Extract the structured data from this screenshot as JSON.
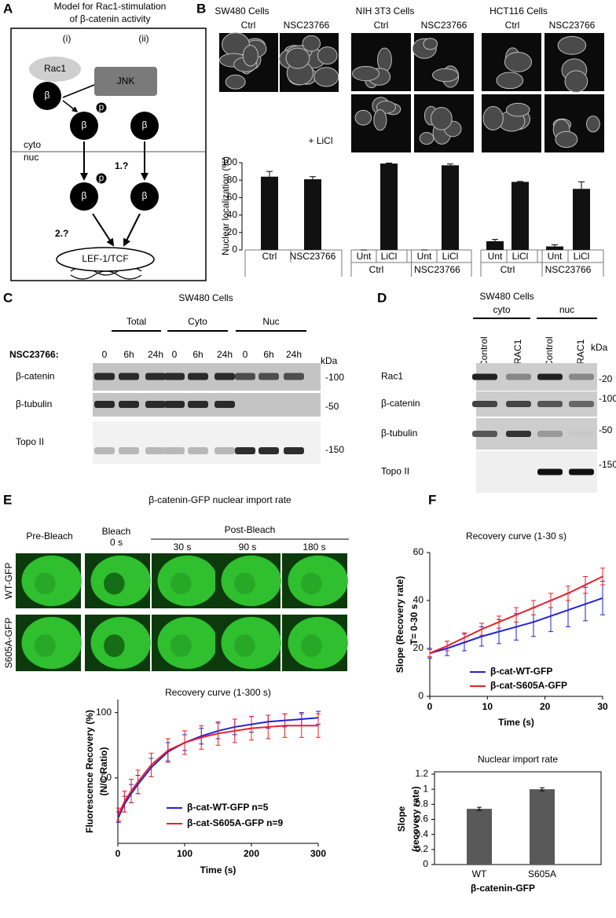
{
  "panels": {
    "a": {
      "label": "A",
      "title": [
        "Model for Rac1-stimulation",
        "of β-catenin activity"
      ],
      "paths": [
        "(i)",
        "(ii)"
      ],
      "rac1": "Rac1",
      "jnk": "JNK",
      "beta": "β",
      "p": "p",
      "cyto": "cyto",
      "nuc": "nuc",
      "q1": "1.?",
      "q2": "2.?",
      "lef": "LEF-1/TCF"
    },
    "b": {
      "label": "B",
      "cells": [
        "SW480 Cells",
        "NIH 3T3 Cells",
        "HCT116 Cells"
      ],
      "conditions": [
        "Ctrl",
        "NSC23766"
      ],
      "licl": "+ LiCl"
    },
    "c": {
      "label": "C",
      "title": "SW480 Cells",
      "fractions": [
        "Total",
        "Cyto",
        "Nuc"
      ],
      "treatment": "NSC23766:",
      "times": [
        "0",
        "6h",
        "24h"
      ],
      "kda": "kDa",
      "proteins": [
        "β-catenin",
        "β-tubulin",
        "Topo II"
      ],
      "markers": [
        "-100",
        "-50",
        "-150"
      ]
    },
    "d": {
      "label": "D",
      "title": "SW480 Cells",
      "fractions": [
        "cyto",
        "nuc"
      ],
      "lanes": [
        "siControl",
        "siRAC1"
      ],
      "kda": "kDa",
      "proteins": [
        "Rac1",
        "β-catenin",
        "β-tubulin",
        "Topo II"
      ],
      "markers": [
        "-20",
        "-100",
        "-50",
        "-150"
      ]
    },
    "e": {
      "label": "E",
      "title": "β-catenin-GFP nuclear import rate",
      "pre": "Pre-Bleach",
      "bleach": "Bleach",
      "bleach_time": "0 s",
      "post": "Post-Bleach",
      "post_times": [
        "30 s",
        "90 s",
        "180 s"
      ],
      "rows": [
        "WT-GFP",
        "S605A-GFP"
      ]
    },
    "f": {
      "label": "F"
    }
  },
  "chart_data": [
    {
      "type": "bar",
      "y_label": "Nuclear localization (%)",
      "categories": [
        "Ctrl",
        "NSC23766",
        "Unt",
        "LiCl",
        "Unt",
        "LiCl",
        "Unt",
        "LiCl",
        "Unt",
        "LiCl"
      ],
      "subgroups": [
        "Ctrl",
        "NSC23766",
        "Ctrl",
        "NSC23766"
      ],
      "values": [
        84,
        81,
        0,
        99,
        0,
        97,
        10,
        78,
        4,
        70
      ],
      "errors": [
        6,
        3,
        0,
        0.5,
        0,
        1.5,
        2,
        0.5,
        2,
        8
      ],
      "color": "#111111",
      "ylim": [
        0,
        100
      ],
      "yticks": [
        0,
        20,
        40,
        60,
        80,
        100
      ]
    },
    {
      "type": "line",
      "title": "Recovery curve (1-300 s)",
      "x_label": "Time (s)",
      "y_label": [
        "Fluorescence Recovery (%)",
        "(N/C Ratio)"
      ],
      "x": [
        1,
        10,
        20,
        30,
        50,
        75,
        100,
        125,
        150,
        175,
        200,
        225,
        250,
        275,
        300
      ],
      "series": [
        {
          "name": "β-cat-WT-GFP n=5",
          "color": "#2323d6",
          "values": [
            20,
            30,
            38,
            45,
            58,
            70,
            77,
            82,
            86,
            89,
            91,
            93,
            94,
            95,
            96
          ],
          "errors": [
            4,
            6,
            7,
            7,
            7,
            7,
            6,
            6,
            6,
            6,
            6,
            5,
            5,
            5,
            5
          ]
        },
        {
          "name": "β-cat-S605A-GFP n=9",
          "color": "#e8202a",
          "values": [
            22,
            32,
            40,
            47,
            60,
            71,
            77,
            81,
            84,
            86,
            88,
            89,
            90,
            90,
            90
          ],
          "errors": [
            5,
            8,
            9,
            9,
            9,
            9,
            9,
            9,
            9,
            9,
            9,
            9,
            9,
            9,
            9
          ]
        }
      ],
      "xlim": [
        0,
        300
      ],
      "xticks": [
        0,
        100,
        200,
        300
      ],
      "ylim": [
        0,
        110
      ],
      "yticks": [
        50,
        100
      ]
    },
    {
      "type": "line",
      "title": "Recovery curve (1-30 s)",
      "x_label": "Time (s)",
      "y_label": [
        "Slope (Recovery rate)",
        "T= 0-30 s"
      ],
      "x": [
        0,
        3,
        6,
        9,
        12,
        15,
        18,
        21,
        24,
        27,
        30
      ],
      "series": [
        {
          "name": "β-cat-WT-GFP",
          "color": "#2323d6",
          "values": [
            18,
            20,
            22.5,
            25,
            27,
            29,
            31,
            33.5,
            36,
            38.5,
            41
          ],
          "errors": [
            2,
            3,
            3.5,
            4,
            5,
            5.5,
            6,
            6.5,
            7,
            7,
            7
          ]
        },
        {
          "name": "β-cat-S605A-GFP",
          "color": "#e8202a",
          "values": [
            18,
            21,
            24.5,
            28,
            31,
            34,
            37,
            40,
            43,
            46.5,
            50
          ],
          "errors": [
            1.5,
            2,
            2,
            2.5,
            2.5,
            3,
            3,
            3,
            3,
            3.5,
            3.5
          ]
        }
      ],
      "xlim": [
        0,
        30
      ],
      "xticks": [
        0,
        10,
        20,
        30
      ],
      "ylim": [
        0,
        60
      ],
      "yticks": [
        0,
        20,
        40,
        60
      ]
    },
    {
      "type": "bar",
      "title": "Nuclear import rate",
      "x_label": "β-catenin-GFP",
      "y_label": [
        "Slope",
        "(recovery rate)"
      ],
      "categories": [
        "WT",
        "S605A"
      ],
      "values": [
        0.74,
        1.0
      ],
      "errors": [
        0.02,
        0.02
      ],
      "color": "#595959",
      "ylim": [
        0,
        1.2
      ],
      "yticks": [
        0,
        0.2,
        0.4,
        0.6,
        0.8,
        1,
        1.2
      ]
    }
  ]
}
